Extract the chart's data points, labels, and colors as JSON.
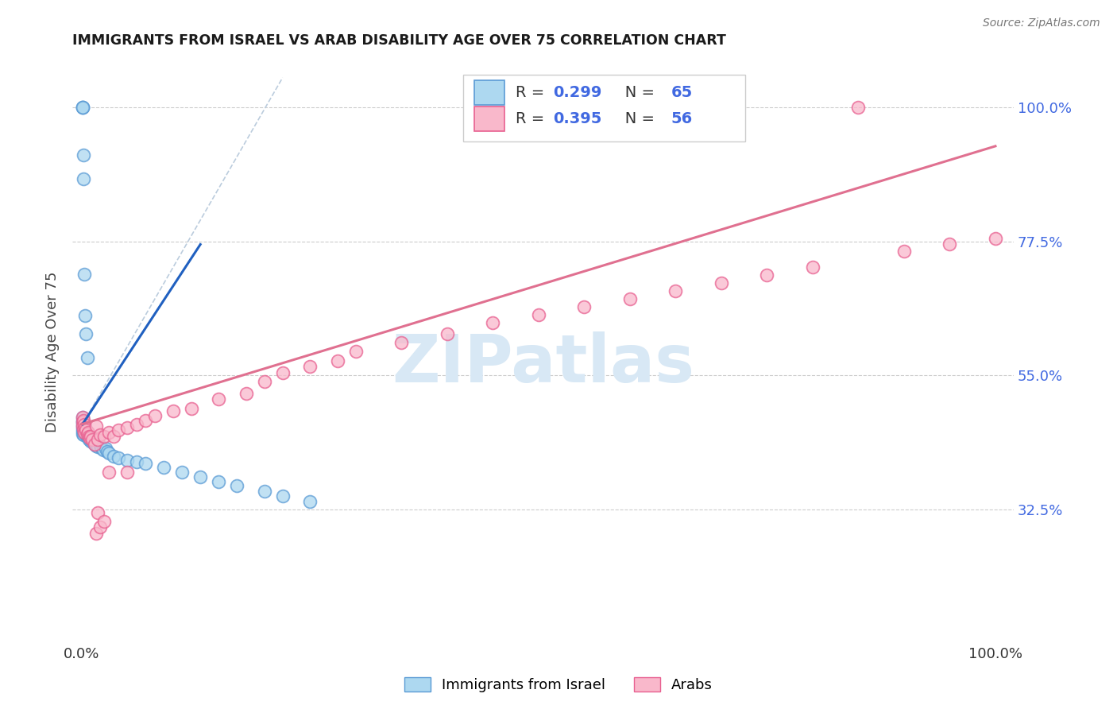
{
  "title": "IMMIGRANTS FROM ISRAEL VS ARAB DISABILITY AGE OVER 75 CORRELATION CHART",
  "source": "Source: ZipAtlas.com",
  "ylabel": "Disability Age Over 75",
  "ytick_vals": [
    0.325,
    0.55,
    0.775,
    1.0
  ],
  "ytick_labels": [
    "32.5%",
    "55.0%",
    "77.5%",
    "100.0%"
  ],
  "xtick_vals": [
    0.0,
    1.0
  ],
  "xtick_labels": [
    "0.0%",
    "100.0%"
  ],
  "israel_color_face": "#add8f0",
  "israel_color_edge": "#5b9bd5",
  "arab_color_face": "#f9b8cb",
  "arab_color_edge": "#e86090",
  "israel_line_color": "#2060c0",
  "arab_line_color": "#e07090",
  "grid_color": "#cccccc",
  "diag_color": "#bbccdd",
  "watermark_color": "#d8e8f5",
  "tick_color": "#4169e1",
  "legend_text_color": "#4169e1",
  "legend_R_israel": "0.299",
  "legend_N_israel": "65",
  "legend_R_arab": "0.395",
  "legend_N_arab": "56",
  "israel_scatter_x": [
    0.001,
    0.001,
    0.001,
    0.001,
    0.001,
    0.001,
    0.001,
    0.001,
    0.002,
    0.002,
    0.002,
    0.002,
    0.002,
    0.003,
    0.003,
    0.003,
    0.004,
    0.004,
    0.005,
    0.005,
    0.006,
    0.006,
    0.007,
    0.007,
    0.008,
    0.008,
    0.009,
    0.01,
    0.01,
    0.011,
    0.012,
    0.013,
    0.014,
    0.015,
    0.016,
    0.017,
    0.018,
    0.02,
    0.022,
    0.024,
    0.026,
    0.028,
    0.03,
    0.035,
    0.04,
    0.05,
    0.06,
    0.07,
    0.09,
    0.11,
    0.13,
    0.15,
    0.17,
    0.2,
    0.22,
    0.25,
    0.001,
    0.001,
    0.001,
    0.002,
    0.002,
    0.003,
    0.004,
    0.005,
    0.006
  ],
  "israel_scatter_y": [
    0.475,
    0.48,
    0.472,
    0.468,
    0.464,
    0.46,
    0.456,
    0.452,
    0.47,
    0.465,
    0.46,
    0.455,
    0.45,
    0.468,
    0.46,
    0.455,
    0.462,
    0.455,
    0.458,
    0.45,
    0.455,
    0.448,
    0.452,
    0.445,
    0.448,
    0.442,
    0.445,
    0.448,
    0.44,
    0.442,
    0.438,
    0.44,
    0.435,
    0.438,
    0.432,
    0.435,
    0.43,
    0.432,
    0.428,
    0.425,
    0.428,
    0.422,
    0.42,
    0.415,
    0.412,
    0.408,
    0.405,
    0.402,
    0.395,
    0.388,
    0.38,
    0.372,
    0.365,
    0.355,
    0.348,
    0.338,
    1.0,
    1.0,
    1.0,
    0.92,
    0.88,
    0.72,
    0.65,
    0.62,
    0.58
  ],
  "arab_scatter_x": [
    0.001,
    0.001,
    0.001,
    0.002,
    0.002,
    0.003,
    0.003,
    0.004,
    0.005,
    0.006,
    0.007,
    0.008,
    0.009,
    0.01,
    0.012,
    0.014,
    0.016,
    0.018,
    0.02,
    0.025,
    0.03,
    0.035,
    0.04,
    0.05,
    0.06,
    0.07,
    0.08,
    0.1,
    0.12,
    0.15,
    0.18,
    0.2,
    0.22,
    0.25,
    0.28,
    0.3,
    0.35,
    0.4,
    0.45,
    0.5,
    0.55,
    0.6,
    0.65,
    0.7,
    0.75,
    0.8,
    0.85,
    0.9,
    0.95,
    1.0,
    0.016,
    0.018,
    0.02,
    0.025,
    0.03,
    0.05
  ],
  "arab_scatter_y": [
    0.48,
    0.472,
    0.465,
    0.475,
    0.46,
    0.468,
    0.455,
    0.462,
    0.458,
    0.452,
    0.455,
    0.448,
    0.445,
    0.448,
    0.442,
    0.435,
    0.465,
    0.442,
    0.45,
    0.448,
    0.455,
    0.448,
    0.458,
    0.462,
    0.468,
    0.475,
    0.482,
    0.49,
    0.495,
    0.51,
    0.52,
    0.54,
    0.555,
    0.565,
    0.575,
    0.59,
    0.605,
    0.62,
    0.638,
    0.652,
    0.665,
    0.678,
    0.692,
    0.705,
    0.718,
    0.732,
    1.0,
    0.758,
    0.77,
    0.78,
    0.285,
    0.32,
    0.295,
    0.305,
    0.388,
    0.388
  ],
  "israel_line_x": [
    0.001,
    0.13
  ],
  "israel_line_y": [
    0.468,
    0.77
  ],
  "arab_line_x": [
    0.0,
    1.0
  ],
  "arab_line_y": [
    0.468,
    0.935
  ],
  "diag_line_x": [
    0.001,
    0.22
  ],
  "diag_line_y": [
    0.468,
    1.05
  ],
  "xlim": [
    -0.01,
    1.02
  ],
  "ylim": [
    0.1,
    1.08
  ]
}
